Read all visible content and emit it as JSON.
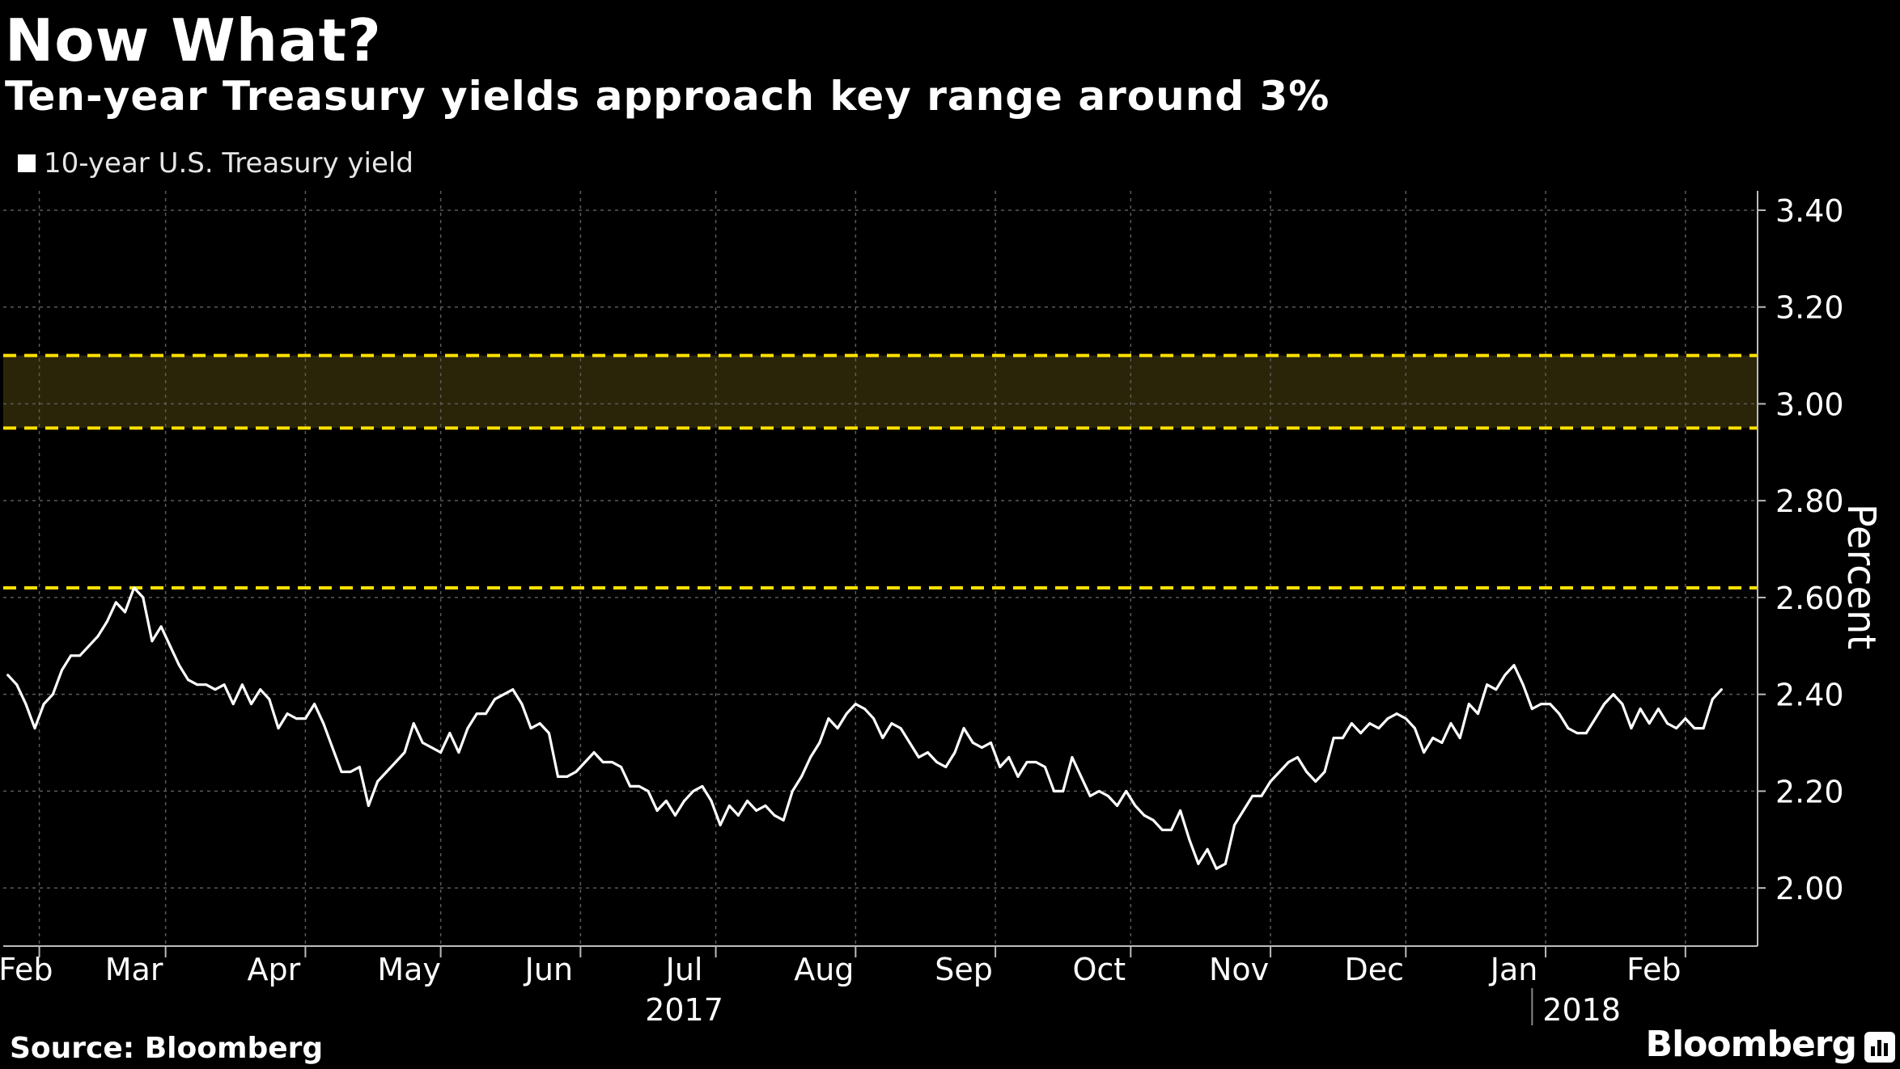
{
  "header": {
    "title": "Now What?",
    "subtitle": "Ten-year Treasury yields approach key range around 3%"
  },
  "footer": {
    "source": "Source: Bloomberg",
    "brand": "Bloomberg"
  },
  "colors": {
    "background": "#000000",
    "line": "#ffffff",
    "band_fill": "#2a2508",
    "reference_line": "#ffe100",
    "grid": "#5a5a5a"
  },
  "chart_data": {
    "type": "line",
    "title": "Now What?",
    "subtitle": "Ten-year Treasury yields approach key range around 3%",
    "ylabel": "Percent",
    "xlabel": "",
    "ylim": [
      1.88,
      3.44
    ],
    "xlim": [
      "2017-01-31",
      "2018-02-24"
    ],
    "y_ticks": [
      2.0,
      2.2,
      2.4,
      2.6,
      2.8,
      3.0,
      3.2,
      3.4
    ],
    "y_tick_labels": [
      "2.00",
      "2.20",
      "2.40",
      "2.60",
      "2.80",
      "3.00",
      "3.20",
      "3.40"
    ],
    "y_axis_position": "right",
    "grid": true,
    "legend": "top-left",
    "month_labels": [
      {
        "label": "Feb",
        "date": "2017-02-05"
      },
      {
        "label": "Mar",
        "date": "2017-03-01"
      },
      {
        "label": "Apr",
        "date": "2017-04-01"
      },
      {
        "label": "May",
        "date": "2017-05-01"
      },
      {
        "label": "Jun",
        "date": "2017-06-01"
      },
      {
        "label": "Jul",
        "date": "2017-07-01"
      },
      {
        "label": "Aug",
        "date": "2017-08-01"
      },
      {
        "label": "Sep",
        "date": "2017-09-01"
      },
      {
        "label": "Oct",
        "date": "2017-10-01"
      },
      {
        "label": "Nov",
        "date": "2017-11-01"
      },
      {
        "label": "Dec",
        "date": "2017-12-01"
      },
      {
        "label": "Jan",
        "date": "2018-01-01"
      },
      {
        "label": "Feb",
        "date": "2018-02-01"
      }
    ],
    "month_grid": [
      "2017-02-08",
      "2017-03-08",
      "2017-04-08",
      "2017-05-08",
      "2017-06-08",
      "2017-07-08",
      "2017-08-08",
      "2017-09-08",
      "2017-10-08",
      "2017-11-08",
      "2017-12-08",
      "2018-01-08",
      "2018-02-08"
    ],
    "year_labels": [
      {
        "label": "2017",
        "date": "2017-07-01"
      },
      {
        "label": "2018",
        "date": "2018-01-16"
      }
    ],
    "year_divider": "2018-01-05",
    "band": {
      "from": 2.95,
      "to": 3.1
    },
    "reference_lines": [
      3.1,
      2.95,
      2.62
    ],
    "series": [
      {
        "name": "10-year U.S. Treasury yield",
        "points": [
          [
            "2017-02-01",
            2.44
          ],
          [
            "2017-02-03",
            2.42
          ],
          [
            "2017-02-05",
            2.38
          ],
          [
            "2017-02-07",
            2.33
          ],
          [
            "2017-02-09",
            2.38
          ],
          [
            "2017-02-11",
            2.4
          ],
          [
            "2017-02-13",
            2.45
          ],
          [
            "2017-02-15",
            2.48
          ],
          [
            "2017-02-17",
            2.48
          ],
          [
            "2017-02-19",
            2.5
          ],
          [
            "2017-02-21",
            2.52
          ],
          [
            "2017-02-23",
            2.55
          ],
          [
            "2017-02-25",
            2.59
          ],
          [
            "2017-02-27",
            2.57
          ],
          [
            "2017-03-01",
            2.62
          ],
          [
            "2017-03-03",
            2.6
          ],
          [
            "2017-03-05",
            2.51
          ],
          [
            "2017-03-07",
            2.54
          ],
          [
            "2017-03-09",
            2.5
          ],
          [
            "2017-03-11",
            2.46
          ],
          [
            "2017-03-13",
            2.43
          ],
          [
            "2017-03-15",
            2.42
          ],
          [
            "2017-03-17",
            2.42
          ],
          [
            "2017-03-19",
            2.41
          ],
          [
            "2017-03-21",
            2.42
          ],
          [
            "2017-03-23",
            2.38
          ],
          [
            "2017-03-25",
            2.42
          ],
          [
            "2017-03-27",
            2.38
          ],
          [
            "2017-03-29",
            2.41
          ],
          [
            "2017-03-31",
            2.39
          ],
          [
            "2017-04-02",
            2.33
          ],
          [
            "2017-04-04",
            2.36
          ],
          [
            "2017-04-06",
            2.35
          ],
          [
            "2017-04-08",
            2.35
          ],
          [
            "2017-04-10",
            2.38
          ],
          [
            "2017-04-12",
            2.34
          ],
          [
            "2017-04-14",
            2.29
          ],
          [
            "2017-04-16",
            2.24
          ],
          [
            "2017-04-18",
            2.24
          ],
          [
            "2017-04-20",
            2.25
          ],
          [
            "2017-04-22",
            2.17
          ],
          [
            "2017-04-24",
            2.22
          ],
          [
            "2017-04-26",
            2.24
          ],
          [
            "2017-04-28",
            2.26
          ],
          [
            "2017-04-30",
            2.28
          ],
          [
            "2017-05-02",
            2.34
          ],
          [
            "2017-05-04",
            2.3
          ],
          [
            "2017-05-06",
            2.29
          ],
          [
            "2017-05-08",
            2.28
          ],
          [
            "2017-05-10",
            2.32
          ],
          [
            "2017-05-12",
            2.28
          ],
          [
            "2017-05-14",
            2.33
          ],
          [
            "2017-05-16",
            2.36
          ],
          [
            "2017-05-18",
            2.36
          ],
          [
            "2017-05-20",
            2.39
          ],
          [
            "2017-05-22",
            2.4
          ],
          [
            "2017-05-24",
            2.41
          ],
          [
            "2017-05-26",
            2.38
          ],
          [
            "2017-05-28",
            2.33
          ],
          [
            "2017-05-30",
            2.34
          ],
          [
            "2017-06-01",
            2.32
          ],
          [
            "2017-06-03",
            2.23
          ],
          [
            "2017-06-05",
            2.23
          ],
          [
            "2017-06-07",
            2.24
          ],
          [
            "2017-06-09",
            2.26
          ],
          [
            "2017-06-11",
            2.28
          ],
          [
            "2017-06-13",
            2.26
          ],
          [
            "2017-06-15",
            2.26
          ],
          [
            "2017-06-17",
            2.25
          ],
          [
            "2017-06-19",
            2.21
          ],
          [
            "2017-06-21",
            2.21
          ],
          [
            "2017-06-23",
            2.2
          ],
          [
            "2017-06-25",
            2.16
          ],
          [
            "2017-06-27",
            2.18
          ],
          [
            "2017-06-29",
            2.15
          ],
          [
            "2017-07-01",
            2.18
          ],
          [
            "2017-07-03",
            2.2
          ],
          [
            "2017-07-05",
            2.21
          ],
          [
            "2017-07-07",
            2.18
          ],
          [
            "2017-07-09",
            2.13
          ],
          [
            "2017-07-11",
            2.17
          ],
          [
            "2017-07-13",
            2.15
          ],
          [
            "2017-07-15",
            2.18
          ],
          [
            "2017-07-17",
            2.16
          ],
          [
            "2017-07-19",
            2.17
          ],
          [
            "2017-07-21",
            2.15
          ],
          [
            "2017-07-23",
            2.14
          ],
          [
            "2017-07-25",
            2.2
          ],
          [
            "2017-07-27",
            2.23
          ],
          [
            "2017-07-29",
            2.27
          ],
          [
            "2017-07-31",
            2.3
          ],
          [
            "2017-08-02",
            2.35
          ],
          [
            "2017-08-04",
            2.33
          ],
          [
            "2017-08-06",
            2.36
          ],
          [
            "2017-08-08",
            2.38
          ],
          [
            "2017-08-10",
            2.37
          ],
          [
            "2017-08-12",
            2.35
          ],
          [
            "2017-08-14",
            2.31
          ],
          [
            "2017-08-16",
            2.34
          ],
          [
            "2017-08-18",
            2.33
          ],
          [
            "2017-08-20",
            2.3
          ],
          [
            "2017-08-22",
            2.27
          ],
          [
            "2017-08-24",
            2.28
          ],
          [
            "2017-08-26",
            2.26
          ],
          [
            "2017-08-28",
            2.25
          ],
          [
            "2017-08-30",
            2.28
          ],
          [
            "2017-09-01",
            2.33
          ],
          [
            "2017-09-03",
            2.3
          ],
          [
            "2017-09-05",
            2.29
          ],
          [
            "2017-09-07",
            2.3
          ],
          [
            "2017-09-09",
            2.25
          ],
          [
            "2017-09-11",
            2.27
          ],
          [
            "2017-09-13",
            2.23
          ],
          [
            "2017-09-15",
            2.26
          ],
          [
            "2017-09-17",
            2.26
          ],
          [
            "2017-09-19",
            2.25
          ],
          [
            "2017-09-21",
            2.2
          ],
          [
            "2017-09-23",
            2.2
          ],
          [
            "2017-09-25",
            2.27
          ],
          [
            "2017-09-27",
            2.23
          ],
          [
            "2017-09-29",
            2.19
          ],
          [
            "2017-10-01",
            2.2
          ],
          [
            "2017-10-03",
            2.19
          ],
          [
            "2017-10-05",
            2.17
          ],
          [
            "2017-10-07",
            2.2
          ],
          [
            "2017-10-09",
            2.17
          ],
          [
            "2017-10-11",
            2.15
          ],
          [
            "2017-10-13",
            2.14
          ],
          [
            "2017-10-15",
            2.12
          ],
          [
            "2017-10-17",
            2.12
          ],
          [
            "2017-10-19",
            2.16
          ],
          [
            "2017-10-21",
            2.1
          ],
          [
            "2017-10-23",
            2.05
          ],
          [
            "2017-10-25",
            2.08
          ],
          [
            "2017-10-27",
            2.04
          ],
          [
            "2017-10-29",
            2.05
          ],
          [
            "2017-10-31",
            2.13
          ],
          [
            "2017-11-02",
            2.16
          ],
          [
            "2017-11-04",
            2.19
          ],
          [
            "2017-11-06",
            2.19
          ],
          [
            "2017-11-08",
            2.22
          ],
          [
            "2017-11-10",
            2.24
          ],
          [
            "2017-11-12",
            2.26
          ],
          [
            "2017-11-14",
            2.27
          ],
          [
            "2017-11-16",
            2.24
          ],
          [
            "2017-11-18",
            2.22
          ],
          [
            "2017-11-20",
            2.24
          ],
          [
            "2017-11-22",
            2.31
          ],
          [
            "2017-11-24",
            2.31
          ],
          [
            "2017-11-26",
            2.34
          ],
          [
            "2017-11-28",
            2.32
          ],
          [
            "2017-11-30",
            2.34
          ],
          [
            "2017-12-02",
            2.33
          ],
          [
            "2017-12-04",
            2.35
          ],
          [
            "2017-12-06",
            2.36
          ],
          [
            "2017-12-08",
            2.35
          ],
          [
            "2017-12-10",
            2.33
          ],
          [
            "2017-12-12",
            2.28
          ],
          [
            "2017-12-14",
            2.31
          ],
          [
            "2017-12-16",
            2.3
          ],
          [
            "2017-12-18",
            2.34
          ],
          [
            "2017-12-20",
            2.31
          ],
          [
            "2017-12-22",
            2.38
          ],
          [
            "2017-12-24",
            2.36
          ],
          [
            "2017-12-26",
            2.42
          ],
          [
            "2017-12-28",
            2.41
          ],
          [
            "2017-12-30",
            2.44
          ],
          [
            "2018-01-01",
            2.46
          ],
          [
            "2018-01-03",
            2.42
          ],
          [
            "2018-01-05",
            2.37
          ],
          [
            "2018-01-07",
            2.38
          ],
          [
            "2018-01-09",
            2.38
          ],
          [
            "2018-01-11",
            2.36
          ],
          [
            "2018-01-13",
            2.33
          ],
          [
            "2018-01-15",
            2.32
          ],
          [
            "2018-01-17",
            2.32
          ],
          [
            "2018-01-19",
            2.35
          ],
          [
            "2018-01-21",
            2.38
          ],
          [
            "2018-01-23",
            2.4
          ],
          [
            "2018-01-25",
            2.38
          ],
          [
            "2018-01-27",
            2.33
          ],
          [
            "2018-01-29",
            2.37
          ],
          [
            "2018-01-31",
            2.34
          ],
          [
            "2018-02-02",
            2.37
          ],
          [
            "2018-02-04",
            2.34
          ],
          [
            "2018-02-06",
            2.33
          ],
          [
            "2018-02-08",
            2.35
          ],
          [
            "2018-02-10",
            2.33
          ],
          [
            "2018-02-12",
            2.33
          ],
          [
            "2018-02-14",
            2.39
          ],
          [
            "2018-02-16",
            2.41
          ]
        ]
      }
    ]
  }
}
